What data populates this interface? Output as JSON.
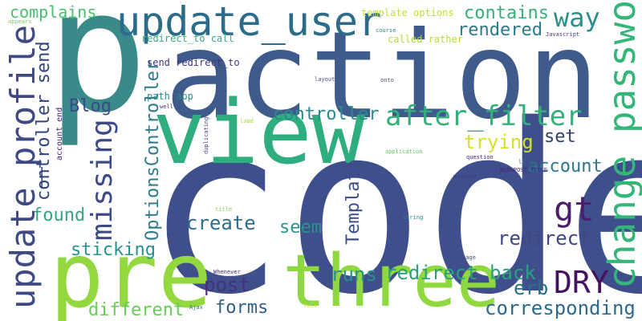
{
  "words": [
    {
      "text": "code",
      "color": "#3f4f8c",
      "rot": 0
    },
    {
      "text": "action",
      "color": "#3f5b8c",
      "rot": 0
    },
    {
      "text": "p",
      "color": "#3a8a8a",
      "rot": 0
    },
    {
      "text": "view",
      "color": "#2eae7e",
      "rot": 0
    },
    {
      "text": "pre",
      "color": "#94d83f",
      "rot": 0
    },
    {
      "text": "three",
      "color": "#8fd83f",
      "rot": 0
    },
    {
      "text": "update_user",
      "color": "#2c6b89",
      "rot": 0
    },
    {
      "text": "change_password",
      "color": "#34b679",
      "rot": -90
    },
    {
      "text": "update_profile",
      "color": "#3f4a84",
      "rot": -90
    },
    {
      "text": "after_filter",
      "color": "#33b07a",
      "rot": 0
    },
    {
      "text": "gt",
      "color": "#4a1e6b",
      "rot": 0
    },
    {
      "text": "DRY",
      "color": "#44125f",
      "rot": 0
    },
    {
      "text": "missing",
      "color": "#3e4a87",
      "rot": -90
    },
    {
      "text": "way",
      "color": "#2a8f8a",
      "rot": 0
    },
    {
      "text": "contains",
      "color": "#35b078",
      "rot": 0
    },
    {
      "text": "rendered",
      "color": "#2d7a8c",
      "rot": 0
    },
    {
      "text": "controller",
      "color": "#2b898b",
      "rot": 0
    },
    {
      "text": "trying",
      "color": "#d4e22a",
      "rot": 0
    },
    {
      "text": "set",
      "color": "#2e3f6e",
      "rot": 0
    },
    {
      "text": "account",
      "color": "#2a768c",
      "rot": 0
    },
    {
      "text": "redirect back",
      "color": "#2ca07f",
      "rot": 0
    },
    {
      "text": "runs",
      "color": "#2b908b",
      "rot": 0
    },
    {
      "text": "redirect",
      "color": "#3f4782",
      "rot": 0
    },
    {
      "text": "erb",
      "color": "#2a6f8a",
      "rot": 0
    },
    {
      "text": "corresponding",
      "color": "#2b6a8c",
      "rot": 0
    },
    {
      "text": "post",
      "color": "#46307a",
      "rot": 0
    },
    {
      "text": "forms",
      "color": "#2e5f8d",
      "rot": 0
    },
    {
      "text": "different",
      "color": "#6acb5a",
      "rot": 0
    },
    {
      "text": "sticking",
      "color": "#26918a",
      "rot": 0
    },
    {
      "text": "seem",
      "color": "#27968a",
      "rot": 0
    },
    {
      "text": "create",
      "color": "#2e6d8e",
      "rot": 0
    },
    {
      "text": "Template",
      "color": "#3b4d87",
      "rot": -90
    },
    {
      "text": "OptionsController",
      "color": "#2c7a8c",
      "rot": -90
    },
    {
      "text": "found",
      "color": "#30a87f",
      "rot": 0
    },
    {
      "text": "Blog",
      "color": "#3b4b86",
      "rot": 0
    },
    {
      "text": "complains",
      "color": "#4bbd6f",
      "rot": 0
    },
    {
      "text": "controller send",
      "color": "#31447f",
      "rot": -90
    },
    {
      "text": "path app",
      "color": "#2a8a8b",
      "rot": 0
    },
    {
      "text": "send redirect_to",
      "color": "#3d357d",
      "rot": 0
    },
    {
      "text": "redirect_to call",
      "color": "#36ac7a",
      "rot": 0
    },
    {
      "text": "template options",
      "color": "#c8dc31",
      "rot": 0
    },
    {
      "text": "called rather",
      "color": "#b2dc35",
      "rot": 0
    },
    {
      "text": "account end",
      "color": "#482173",
      "rot": -90
    },
    {
      "text": "appears",
      "color": "#7ed34e",
      "rot": 0
    },
    {
      "text": "course",
      "color": "#2a8a8b",
      "rot": 0
    },
    {
      "text": "Javascript",
      "color": "#3a3a78",
      "rot": 0
    },
    {
      "text": "layout",
      "color": "#3e4a88",
      "rot": 0
    },
    {
      "text": "onto",
      "color": "#3b4f8c",
      "rot": 0
    },
    {
      "text": "well",
      "color": "#3e3a7a",
      "rot": 0
    },
    {
      "text": "duplicating",
      "color": "#443a80",
      "rot": -90
    },
    {
      "text": "load",
      "color": "#a0d93a",
      "rot": 0
    },
    {
      "text": "application",
      "color": "#5cc864",
      "rot": 0
    },
    {
      "text": "question",
      "color": "#47257a",
      "rot": 0
    },
    {
      "text": "BLOGPOST_TITLE",
      "color": "#44257a",
      "rot": 0
    },
    {
      "text": "lt",
      "color": "#2a7a8a",
      "rot": 0
    },
    {
      "text": "without",
      "color": "#3a3a78",
      "rot": 0
    },
    {
      "text": "title",
      "color": "#8ad545",
      "rot": 0
    },
    {
      "text": "string",
      "color": "#2b8b8b",
      "rot": 0
    },
    {
      "text": "Whenever",
      "color": "#3d2f76",
      "rot": 0
    },
    {
      "text": "page",
      "color": "#3a4f88",
      "rot": 0
    },
    {
      "text": "Ajax",
      "color": "#2f6e8d",
      "rot": 0
    },
    {
      "text": "tell",
      "color": "#c8de30",
      "rot": 0
    }
  ]
}
